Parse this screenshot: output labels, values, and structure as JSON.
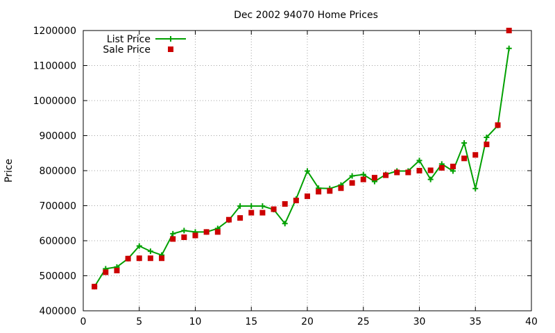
{
  "chart_data": {
    "type": "line",
    "title": "Dec 2002 94070 Home Prices",
    "xlabel": "",
    "ylabel": "Price",
    "xlim": [
      0,
      40
    ],
    "ylim": [
      400000,
      1200000
    ],
    "x_ticks": [
      "0",
      "5",
      "10",
      "15",
      "20",
      "25",
      "30",
      "35",
      "40"
    ],
    "y_ticks": [
      "400000",
      "500000",
      "600000",
      "700000",
      "800000",
      "900000",
      "1000000",
      "1100000",
      "1200000"
    ],
    "grid": true,
    "legend_position": "top-left",
    "series": [
      {
        "name": "List Price",
        "style": "line-plus",
        "color": "#00a000",
        "x": [
          1,
          2,
          3,
          4,
          5,
          6,
          7,
          8,
          9,
          10,
          11,
          12,
          13,
          14,
          15,
          16,
          17,
          18,
          19,
          20,
          21,
          22,
          23,
          24,
          25,
          26,
          27,
          28,
          29,
          30,
          31,
          32,
          33,
          34,
          35,
          36,
          37,
          38
        ],
        "values": [
          469000,
          520000,
          525000,
          549000,
          585000,
          570000,
          559000,
          620000,
          629000,
          625000,
          625000,
          635000,
          659000,
          699000,
          699000,
          699000,
          689000,
          649000,
          719000,
          799000,
          750000,
          749000,
          759000,
          785000,
          789000,
          769000,
          789000,
          799000,
          799000,
          829000,
          775000,
          819000,
          799000,
          879000,
          749000,
          895000,
          929000,
          1149000
        ]
      },
      {
        "name": "Sale Price",
        "style": "square-points",
        "color": "#cc0000",
        "x": [
          1,
          2,
          3,
          4,
          5,
          6,
          7,
          8,
          9,
          10,
          11,
          12,
          13,
          14,
          15,
          16,
          17,
          18,
          19,
          20,
          21,
          22,
          23,
          24,
          25,
          26,
          27,
          28,
          29,
          30,
          31,
          32,
          33,
          34,
          35,
          36,
          37,
          38
        ],
        "values": [
          469000,
          510000,
          515000,
          549000,
          550000,
          550000,
          550000,
          605000,
          610000,
          615000,
          625000,
          625000,
          660000,
          665000,
          680000,
          680000,
          690000,
          705000,
          715000,
          727000,
          740000,
          742000,
          750000,
          765000,
          775000,
          780000,
          787000,
          795000,
          795000,
          800000,
          801000,
          808000,
          812000,
          835000,
          845000,
          875000,
          930000,
          1200000
        ]
      }
    ]
  }
}
